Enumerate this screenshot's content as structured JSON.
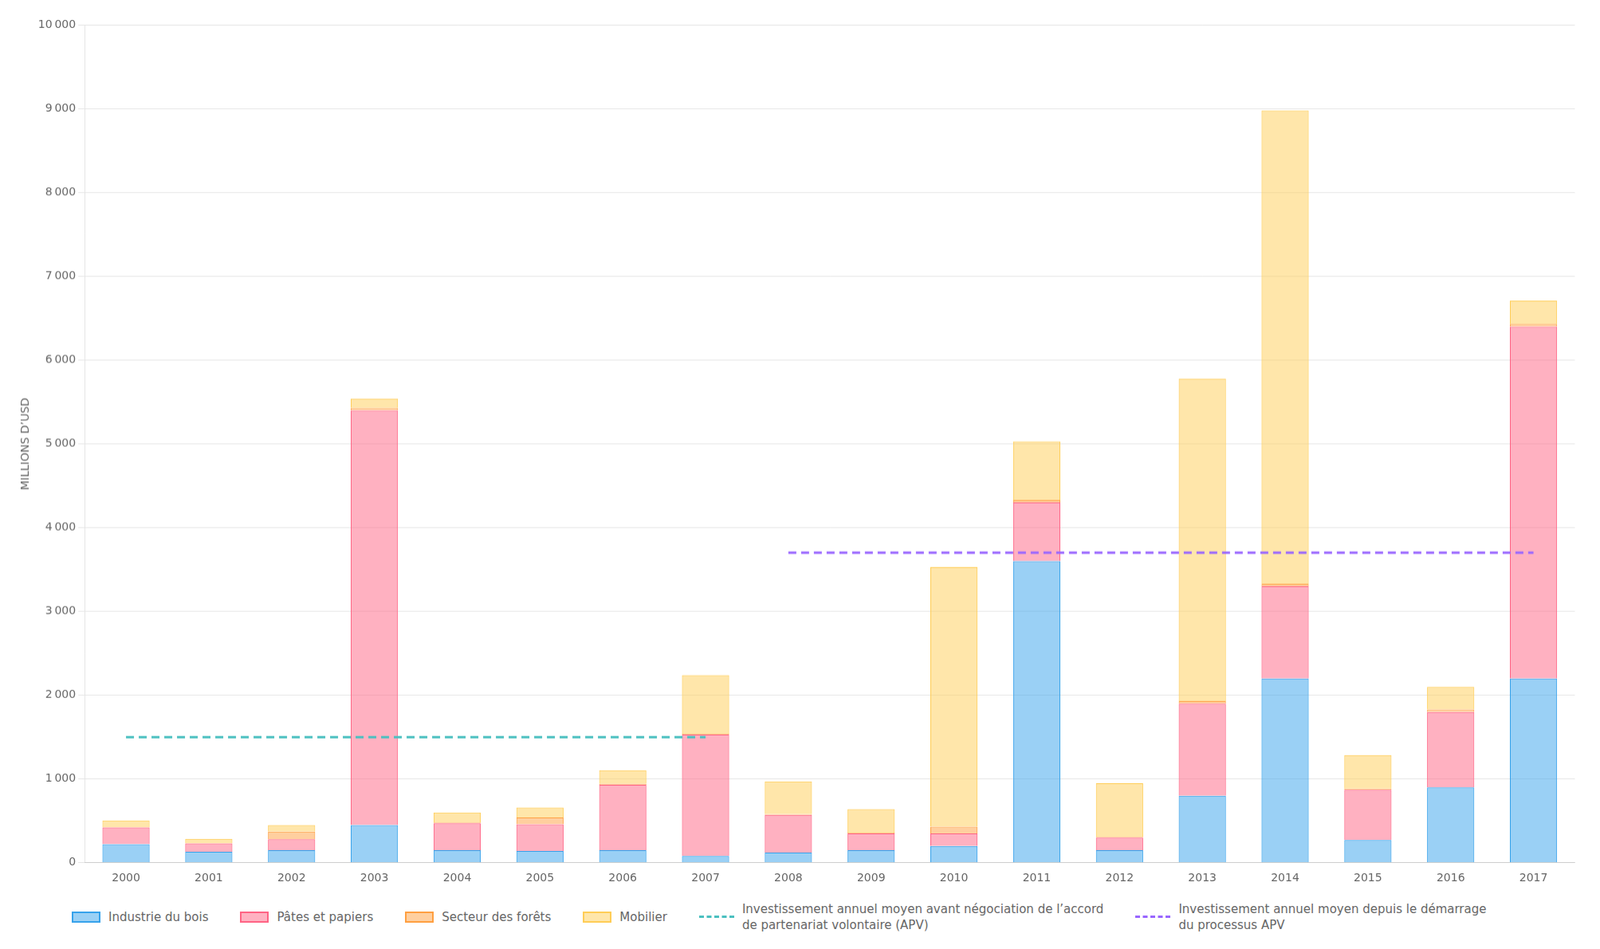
{
  "chart_data": {
    "type": "bar",
    "stacked": true,
    "categories": [
      "2000",
      "2001",
      "2002",
      "2003",
      "2004",
      "2005",
      "2006",
      "2007",
      "2008",
      "2009",
      "2010",
      "2011",
      "2012",
      "2013",
      "2014",
      "2015",
      "2016",
      "2017"
    ],
    "series": [
      {
        "name": "Industrie du bois",
        "values": [
          220,
          130,
          150,
          450,
          150,
          140,
          150,
          80,
          120,
          150,
          200,
          3600,
          150,
          800,
          2200,
          270,
          900,
          2200
        ]
      },
      {
        "name": "Pâtes et papiers",
        "values": [
          200,
          100,
          130,
          4950,
          320,
          320,
          780,
          1450,
          450,
          200,
          150,
          700,
          150,
          1100,
          1100,
          600,
          900,
          4200
        ]
      },
      {
        "name": "Secteur des forêts",
        "values": [
          5,
          5,
          90,
          30,
          10,
          80,
          15,
          10,
          10,
          10,
          80,
          30,
          10,
          30,
          30,
          15,
          30,
          30
        ]
      },
      {
        "name": "Mobilier",
        "values": [
          80,
          50,
          80,
          110,
          120,
          120,
          160,
          700,
          390,
          280,
          3100,
          700,
          640,
          3850,
          5650,
          400,
          270,
          280
        ]
      },
      {
        "name": "Investissement annuel moyen avant négociation de l’accord\nde partenariat volontaire (APV)",
        "type": "line",
        "line_style": "dashed",
        "values": [
          1500,
          1500,
          1500,
          1500,
          1500,
          1500,
          1500,
          1500,
          null,
          null,
          null,
          null,
          null,
          null,
          null,
          null,
          null,
          null
        ]
      },
      {
        "name": "Investissement annuel moyen depuis le démarrage\ndu processus APV",
        "type": "line",
        "line_style": "dashed",
        "values": [
          null,
          null,
          null,
          null,
          null,
          null,
          null,
          null,
          3700,
          3700,
          3700,
          3700,
          3700,
          3700,
          3700,
          3700,
          3700,
          3700
        ]
      }
    ],
    "ylabel": "MILLIONS D’USD",
    "ylim": [
      0,
      10000
    ],
    "yticks": [
      0,
      {
        "value": 1000,
        "label": "1 000"
      },
      {
        "value": 2000,
        "label": "2 000"
      },
      {
        "value": 3000,
        "label": "3 000"
      },
      {
        "value": 4000,
        "label": "4 000"
      },
      {
        "value": 5000,
        "label": "5 000"
      },
      {
        "value": 6000,
        "label": "6 000"
      },
      {
        "value": 7000,
        "label": "7 000"
      },
      {
        "value": 8000,
        "label": "8 000"
      },
      {
        "value": 9000,
        "label": "9 000"
      },
      {
        "value": 10000,
        "label": "10 000"
      }
    ],
    "grid": true,
    "legend": "bottom"
  }
}
